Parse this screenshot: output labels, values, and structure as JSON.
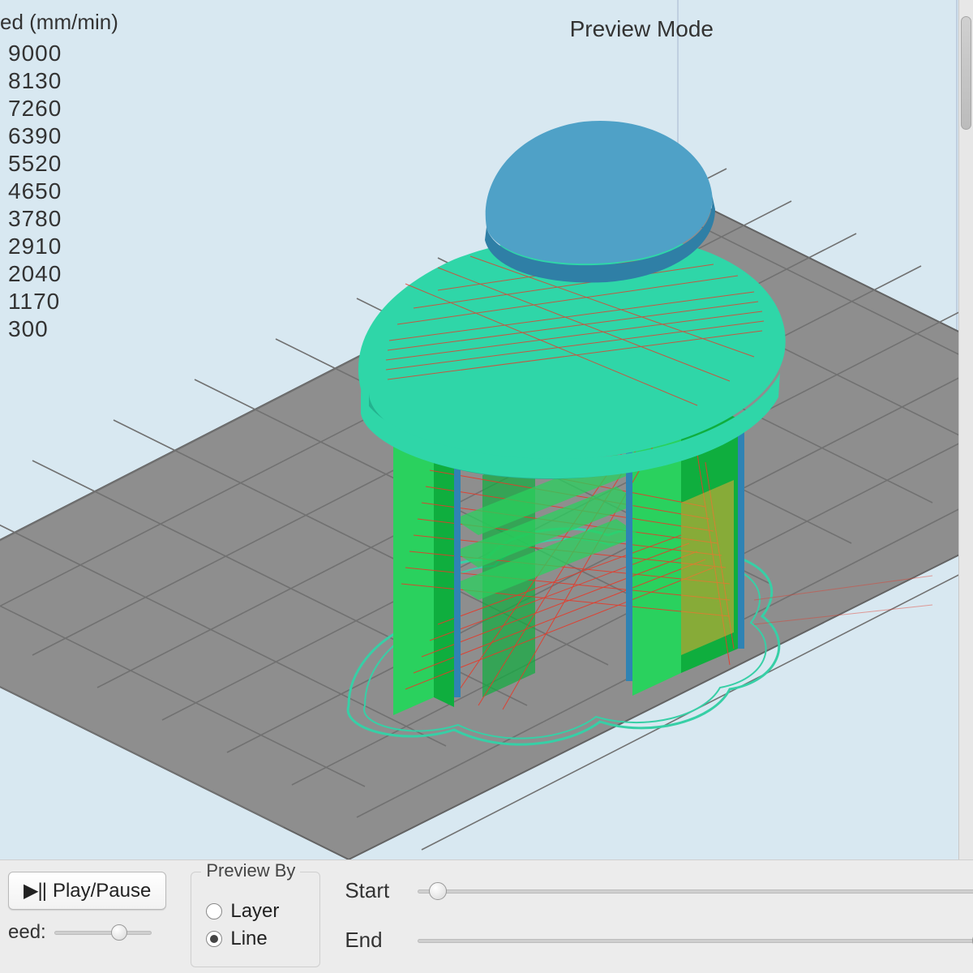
{
  "legend": {
    "title": "ed (mm/min)",
    "values": [
      9000,
      8130,
      7260,
      6390,
      5520,
      4650,
      3780,
      2910,
      2040,
      1170,
      300
    ]
  },
  "mode_label": "Preview Mode",
  "scene": {
    "background_color": "#d8e8f1",
    "grid_color": "#717171",
    "build_plate_fill": "#8e8e8e",
    "build_plate_stroke": "#636363",
    "axis_line_color": "#bfcfe0",
    "model_colors": {
      "top_cap": "#4fa1c7",
      "top_cap_shadow": "#2f7fa6",
      "body_front": "#2ad15e",
      "body_side": "#0fae3e",
      "shell_teal": "#2fd6a8",
      "shell_teal_dark": "#24b28f",
      "travel_red": "#e63a2a",
      "skirt_teal": "#37cfa6",
      "wall_blue": "#2f83b4",
      "orange": "#d7a836"
    }
  },
  "controls": {
    "play_pause_label": "Play/Pause",
    "speed_label": "eed:",
    "speed_knob_pct": 72,
    "preview_by": {
      "group_title": "Preview By",
      "options": [
        "Layer",
        "Line"
      ],
      "selected": "Line"
    },
    "start_label": "Start",
    "start_knob_pct": 2,
    "end_label": "End",
    "end_knob_pct": 98
  }
}
